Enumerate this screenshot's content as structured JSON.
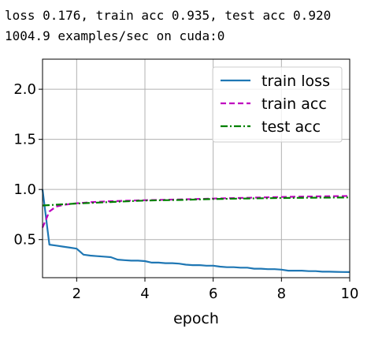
{
  "log_output": {
    "line1": "loss 0.176, train acc 0.935, test acc 0.920",
    "line2": "1004.9 examples/sec on cuda:0"
  },
  "chart_data": {
    "type": "line",
    "title": "",
    "xlabel": "epoch",
    "ylabel": "",
    "xlim": [
      1,
      10
    ],
    "ylim": [
      0.12,
      2.3
    ],
    "xticks": [
      2,
      4,
      6,
      8,
      10
    ],
    "yticks": [
      0.5,
      1.0,
      1.5,
      2.0
    ],
    "xtick_labels": [
      "2",
      "4",
      "6",
      "8",
      "10"
    ],
    "ytick_labels": [
      "0.5",
      "1.0",
      "1.5",
      "2.0"
    ],
    "grid": true,
    "legend_position": "top-right",
    "series": [
      {
        "name": "train loss",
        "color": "#1f77b4",
        "style": "solid",
        "x": [
          1.0,
          1.2,
          1.4,
          1.6,
          1.8,
          2.0,
          2.2,
          2.4,
          2.6,
          2.8,
          3.0,
          3.2,
          3.4,
          3.6,
          3.8,
          4.0,
          4.2,
          4.4,
          4.6,
          4.8,
          5.0,
          5.2,
          5.4,
          5.6,
          5.8,
          6.0,
          6.2,
          6.4,
          6.6,
          6.8,
          7.0,
          7.2,
          7.4,
          7.6,
          7.8,
          8.0,
          8.2,
          8.4,
          8.6,
          8.8,
          9.0,
          9.2,
          9.4,
          9.6,
          9.8,
          10.0
        ],
        "y": [
          1.0,
          0.45,
          0.44,
          0.43,
          0.42,
          0.41,
          0.35,
          0.34,
          0.335,
          0.33,
          0.325,
          0.3,
          0.295,
          0.29,
          0.29,
          0.285,
          0.27,
          0.27,
          0.265,
          0.265,
          0.26,
          0.25,
          0.245,
          0.245,
          0.24,
          0.24,
          0.23,
          0.225,
          0.225,
          0.22,
          0.22,
          0.21,
          0.21,
          0.205,
          0.205,
          0.2,
          0.19,
          0.19,
          0.19,
          0.185,
          0.185,
          0.18,
          0.18,
          0.178,
          0.177,
          0.176
        ]
      },
      {
        "name": "train acc",
        "color": "#bf00bf",
        "style": "dashed",
        "x": [
          1.0,
          1.2,
          1.4,
          1.6,
          1.8,
          2.0,
          2.5,
          3.0,
          3.5,
          4.0,
          4.5,
          5.0,
          5.5,
          6.0,
          6.5,
          7.0,
          7.5,
          8.0,
          8.5,
          9.0,
          9.5,
          10.0
        ],
        "y": [
          0.62,
          0.78,
          0.83,
          0.845,
          0.855,
          0.862,
          0.875,
          0.883,
          0.888,
          0.893,
          0.897,
          0.901,
          0.905,
          0.909,
          0.913,
          0.917,
          0.921,
          0.925,
          0.928,
          0.931,
          0.933,
          0.935
        ]
      },
      {
        "name": "test acc",
        "color": "#008000",
        "style": "dashdot",
        "x": [
          1,
          2,
          3,
          4,
          5,
          6,
          7,
          8,
          9,
          10
        ],
        "y": [
          0.84,
          0.86,
          0.875,
          0.89,
          0.895,
          0.905,
          0.91,
          0.915,
          0.918,
          0.92
        ]
      }
    ]
  }
}
